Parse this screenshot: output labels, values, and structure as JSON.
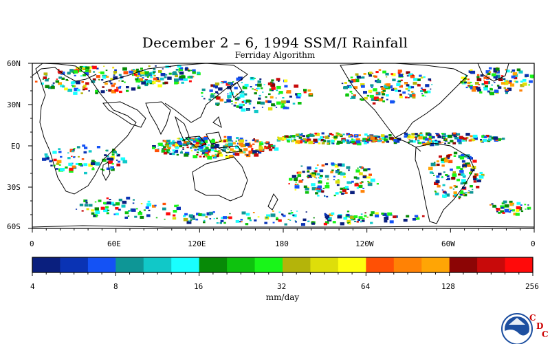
{
  "title": "December 2 – 6, 1994 SSM/I Rainfall",
  "subtitle": "Ferriday Algorithm",
  "lat_labels": [
    "60N",
    "30N",
    "EQ",
    "30S",
    "60S"
  ],
  "lon_labels": [
    "0",
    "60E",
    "120E",
    "180",
    "120W",
    "60W",
    "0"
  ],
  "colorbar": {
    "colors": [
      "#0a1f7e",
      "#0a33b4",
      "#1452f5",
      "#0e9696",
      "#11c8c8",
      "#19ffff",
      "#078a07",
      "#0ec20e",
      "#19f519",
      "#b4b40a",
      "#dede0a",
      "#ffff0f",
      "#ff5005",
      "#ff8205",
      "#ffa505",
      "#8c0505",
      "#c80a0a",
      "#ff0a0a"
    ],
    "tick_labels": [
      "4",
      "8",
      "16",
      "32",
      "64",
      "128",
      "256"
    ],
    "unit": "mm/day"
  },
  "logo": {
    "agency": "NOAA",
    "letters": [
      "C",
      "D",
      "C"
    ]
  }
}
